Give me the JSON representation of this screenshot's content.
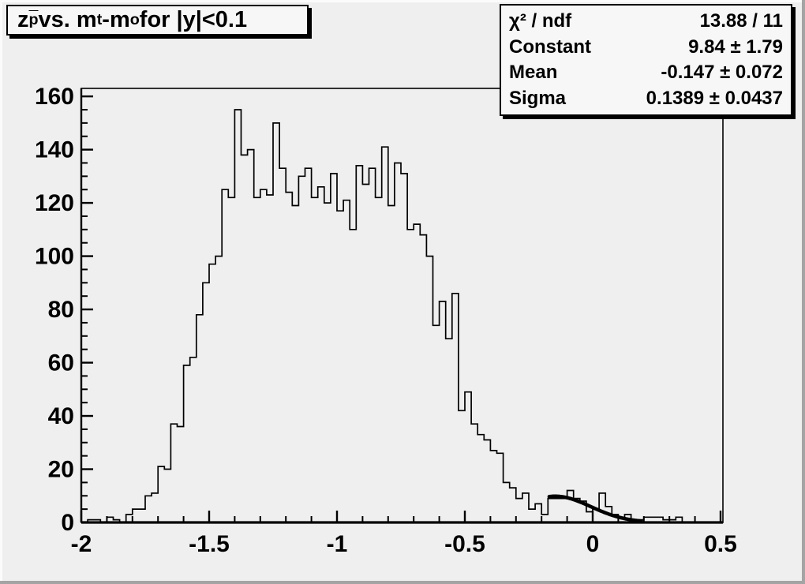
{
  "window": {
    "background": "#efefef",
    "bevel_light": "#fbfbfb",
    "bevel_dark": "#a4a4a4",
    "box_fill": "#f7f7f7"
  },
  "title_box": {
    "plain_text": "z_p̄ vs. m_t-m_o for |y|<0.1",
    "segments": [
      {
        "text": "z",
        "style": "normal"
      },
      {
        "text": "p",
        "style": "sub-overline"
      },
      {
        "text": " vs. m",
        "style": "normal"
      },
      {
        "text": "t",
        "style": "sub"
      },
      {
        "text": "-m",
        "style": "normal"
      },
      {
        "text": "o",
        "style": "sub"
      },
      {
        "text": " for |y|<0.1",
        "style": "normal"
      }
    ]
  },
  "stats_box": {
    "rows": [
      {
        "label": "χ² / ndf",
        "value": "13.88 / 11"
      },
      {
        "label": "Constant",
        "value": "9.84 ± 1.79"
      },
      {
        "label": "Mean",
        "value": "-0.147 ± 0.072"
      },
      {
        "label": "Sigma",
        "value": "0.1389 ± 0.0437"
      }
    ]
  },
  "chart_data": {
    "type": "bar",
    "subtype": "step-histogram",
    "title": "z_p̄ vs. m_t-m_o for |y|<0.1",
    "xlabel": "",
    "ylabel": "",
    "bin_start": -2.0,
    "bin_width": 0.025,
    "values": [
      0,
      1,
      1,
      0,
      2,
      1,
      0,
      3,
      5,
      5,
      10,
      11,
      21,
      20,
      37,
      36,
      59,
      62,
      78,
      90,
      97,
      100,
      125,
      122,
      155,
      138,
      140,
      122,
      125,
      123,
      150,
      133,
      124,
      119,
      130,
      133,
      122,
      126,
      120,
      131,
      117,
      121,
      110,
      134,
      127,
      133,
      122,
      141,
      119,
      135,
      131,
      110,
      112,
      108,
      100,
      74,
      83,
      69,
      86,
      42,
      49,
      37,
      33,
      31,
      27,
      26,
      15,
      13,
      9,
      11,
      5,
      7,
      3,
      9,
      9,
      9,
      12,
      9,
      8,
      4,
      5,
      11,
      6,
      3,
      2,
      3,
      1,
      1,
      2,
      2,
      2,
      1,
      1,
      2,
      0,
      0,
      0,
      0,
      0,
      0
    ],
    "xlim": [
      -2.0,
      0.5093
    ],
    "ylim": [
      0,
      163
    ],
    "x_ticks": {
      "major": [
        -2,
        -1.5,
        -1,
        -0.5,
        0,
        0.5
      ],
      "labels": [
        "-2",
        "-1.5",
        "-1",
        "-0.5",
        "0",
        "0.5"
      ],
      "minor_step": 0.1
    },
    "y_ticks": {
      "major": [
        0,
        20,
        40,
        60,
        80,
        100,
        120,
        140,
        160
      ],
      "labels": [
        "0",
        "20",
        "40",
        "60",
        "80",
        "100",
        "120",
        "140",
        "160"
      ],
      "minor_step": 5
    },
    "grid": false,
    "legend": "none",
    "line_color": "#000000",
    "fit": {
      "type": "gaussian",
      "constant": 9.84,
      "mean": -0.147,
      "sigma": 0.1389,
      "draw_range": [
        -0.17,
        0.19
      ],
      "color": "#000000"
    }
  }
}
